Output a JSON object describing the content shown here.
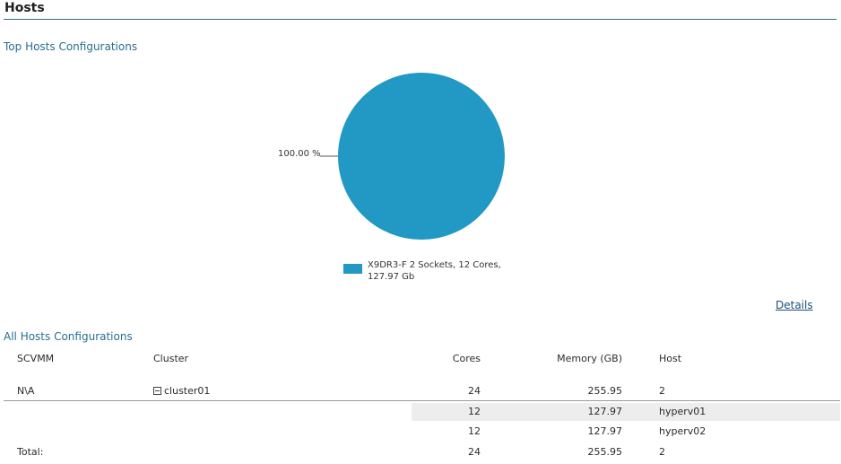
{
  "header": {
    "title": "Hosts"
  },
  "top_section": {
    "label": "Top Hosts Configurations"
  },
  "chart_data": {
    "type": "pie",
    "slices": [
      {
        "label": "X9DR3-F 2 Sockets, 12 Cores, 127.97 Gb",
        "value": 100.0,
        "value_label": "100.00 %",
        "color": "#2298c4"
      }
    ],
    "legend": "bottom"
  },
  "details": {
    "label": "Details"
  },
  "all_section": {
    "label": "All Hosts Configurations"
  },
  "table": {
    "columns": {
      "scvmm": "SCVMM",
      "cluster": "Cluster",
      "cores": "Cores",
      "memory": "Memory (GB)",
      "host": "Host"
    },
    "group": {
      "scvmm": "N\\A",
      "cluster": "cluster01",
      "cores": "24",
      "memory": "255.95",
      "host": "2"
    },
    "rows": [
      {
        "cores": "12",
        "memory": "127.97",
        "host": "hyperv01"
      },
      {
        "cores": "12",
        "memory": "127.97",
        "host": "hyperv02"
      }
    ],
    "total": {
      "label": "Total:",
      "cores": "24",
      "memory": "255.95",
      "host": "2"
    }
  }
}
